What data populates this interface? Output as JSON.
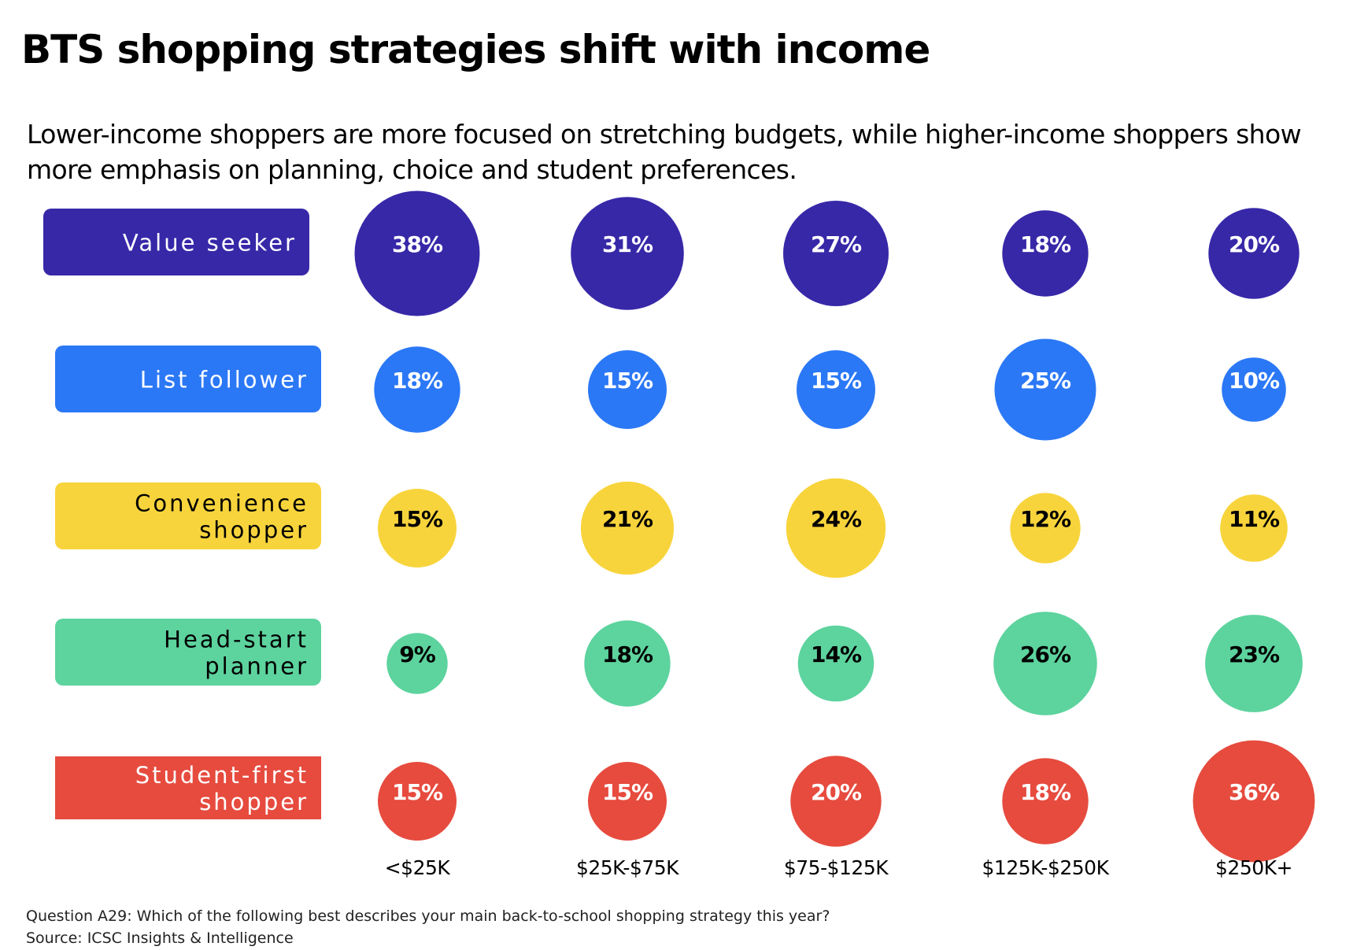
{
  "title": "BTS shopping strategies shift with income",
  "subtitle": "Lower-income shoppers are more focused on stretching budgets, while higher-income shoppers show more emphasis on planning, choice and student preferences.",
  "footer": {
    "question": "Question A29:  Which of the following best describes your main back-to-school shopping strategy this year?",
    "source": "Source: ICSC Insights & Intelligence"
  },
  "chart_data": {
    "type": "bubble-matrix",
    "title": "BTS shopping strategies shift with income",
    "subtitle": "Lower-income shoppers are more focused on stretching budgets, while higher-income shoppers show more emphasis on planning, choice and student preferences.",
    "categories": [
      "<$25K",
      "$25K-$75K",
      "$75-$125K",
      "$125K-$250K",
      "$250K+"
    ],
    "series": [
      {
        "name": "Value seeker",
        "label_lines": [
          "Value seeker"
        ],
        "color": "#3728A8",
        "label_color": "#ffffff",
        "values": [
          38,
          31,
          27,
          18,
          20
        ],
        "value_labels": [
          "38%",
          "31%",
          "27%",
          "18%",
          "20%"
        ]
      },
      {
        "name": "List follower",
        "label_lines": [
          "List follower"
        ],
        "color": "#2B78F6",
        "label_color": "#ffffff",
        "values": [
          18,
          15,
          15,
          25,
          10
        ],
        "value_labels": [
          "18%",
          "15%",
          "15%",
          "25%",
          "10%"
        ]
      },
      {
        "name": "Convenience shopper",
        "label_lines": [
          "Convenience",
          "shopper"
        ],
        "color": "#F8D43C",
        "label_color": "#000000",
        "values": [
          15,
          21,
          24,
          12,
          11
        ],
        "value_labels": [
          "15%",
          "21%",
          "24%",
          "12%",
          "11%"
        ]
      },
      {
        "name": "Head-start planner",
        "label_lines": [
          "Head-start",
          "planner"
        ],
        "color": "#5DD39E",
        "label_color": "#000000",
        "values": [
          9,
          18,
          14,
          26,
          23
        ],
        "value_labels": [
          "9%",
          "18%",
          "14%",
          "26%",
          "23%"
        ]
      },
      {
        "name": "Student-first shopper",
        "label_lines": [
          "Student-first",
          "shopper"
        ],
        "color": "#E64B3E",
        "label_color": "#ffffff",
        "values": [
          15,
          15,
          20,
          18,
          36
        ],
        "value_labels": [
          "15%",
          "15%",
          "20%",
          "18%",
          "36%"
        ]
      }
    ],
    "grid": false,
    "legend": "left (row labels)"
  }
}
